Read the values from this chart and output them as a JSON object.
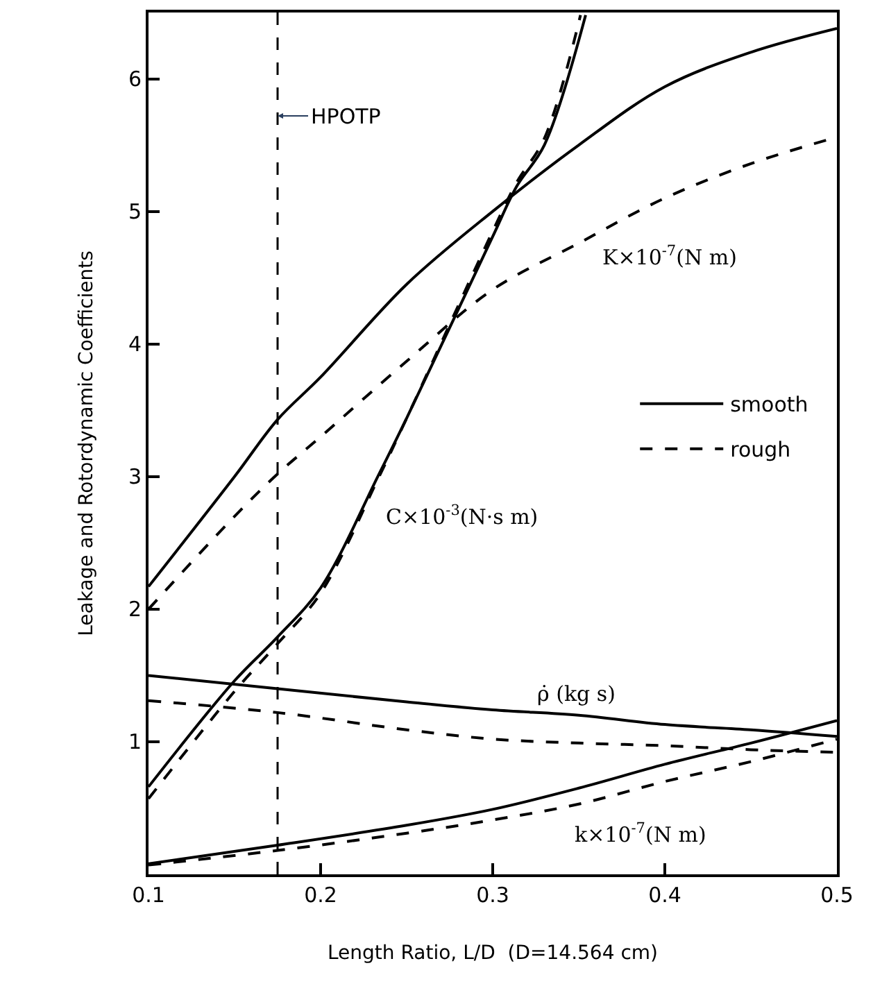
{
  "chart_data": {
    "type": "line",
    "xlabel": "Length Ratio, L/D  (D=14.564 cm)",
    "ylabel": "Leakage and Rotordynamic Coefficients",
    "xlim": [
      0.1,
      0.5
    ],
    "ylim": [
      0,
      6.5
    ],
    "xticks": [
      0.1,
      0.2,
      0.3,
      0.4,
      0.5
    ],
    "yticks": [
      1,
      2,
      3,
      4,
      5,
      6
    ],
    "grid": false,
    "legend": "right",
    "marker": "none",
    "series": [
      {
        "name": "smooth",
        "color": "#000000",
        "line_style": "solid",
        "x": [
          0.1,
          0.15,
          0.175,
          0.2,
          0.25,
          0.3,
          0.35,
          0.4,
          0.45,
          0.5
        ],
        "values": [
          2.17,
          3.0,
          3.43,
          3.75,
          4.45,
          5.0,
          5.5,
          5.94,
          6.2,
          6.38
        ]
      },
      {
        "name": "rough",
        "color": "#000000",
        "line_style": "dashed",
        "x": [
          0.1,
          0.15,
          0.175,
          0.2,
          0.25,
          0.3,
          0.35,
          0.4,
          0.45,
          0.5
        ],
        "values": [
          2.0,
          2.7,
          3.02,
          3.3,
          3.87,
          4.41,
          4.76,
          5.1,
          5.36,
          5.56
        ]
      },
      {
        "color": "#000000",
        "line_style": "solid",
        "x": [
          0.1,
          0.15,
          0.175,
          0.2,
          0.234,
          0.25,
          0.3,
          0.314,
          0.33,
          0.354
        ],
        "values": [
          0.66,
          1.46,
          1.79,
          2.16,
          3.02,
          3.44,
          4.81,
          5.19,
          5.5,
          6.48
        ]
      },
      {
        "color": "#000000",
        "line_style": "dashed",
        "x": [
          0.1,
          0.15,
          0.175,
          0.2,
          0.234,
          0.25,
          0.3,
          0.314,
          0.33,
          0.351
        ],
        "values": [
          0.57,
          1.38,
          1.74,
          2.12,
          3.0,
          3.44,
          4.85,
          5.22,
          5.55,
          6.48
        ]
      },
      {
        "color": "#000000",
        "line_style": "solid",
        "x": [
          0.1,
          0.175,
          0.25,
          0.3,
          0.35,
          0.4,
          0.45,
          0.5
        ],
        "values": [
          1.5,
          1.4,
          1.3,
          1.24,
          1.2,
          1.13,
          1.09,
          1.04
        ]
      },
      {
        "color": "#000000",
        "line_style": "dashed",
        "x": [
          0.1,
          0.175,
          0.25,
          0.3,
          0.35,
          0.4,
          0.45,
          0.5
        ],
        "values": [
          1.31,
          1.22,
          1.09,
          1.02,
          0.99,
          0.97,
          0.94,
          0.92
        ]
      },
      {
        "color": "#000000",
        "line_style": "solid",
        "x": [
          0.1,
          0.175,
          0.25,
          0.3,
          0.35,
          0.4,
          0.45,
          0.5
        ],
        "values": [
          0.08,
          0.22,
          0.37,
          0.49,
          0.65,
          0.83,
          0.99,
          1.16
        ]
      },
      {
        "color": "#000000",
        "line_style": "dashed",
        "x": [
          0.1,
          0.175,
          0.25,
          0.3,
          0.35,
          0.4,
          0.45,
          0.5
        ],
        "values": [
          0.07,
          0.18,
          0.31,
          0.41,
          0.53,
          0.7,
          0.85,
          1.02
        ]
      }
    ],
    "ref_lines": [
      {
        "axis": "x",
        "value": 0.175,
        "label": "HPOTP",
        "line_style": "dashed",
        "color": "#000000"
      }
    ],
    "annotations": [
      "K×10$^{-7}$(N m)",
      "C×10$^{-3}$(N·s m)",
      "ρ̇ (kg s)",
      "k×10$^{-7}$(N m)"
    ]
  }
}
